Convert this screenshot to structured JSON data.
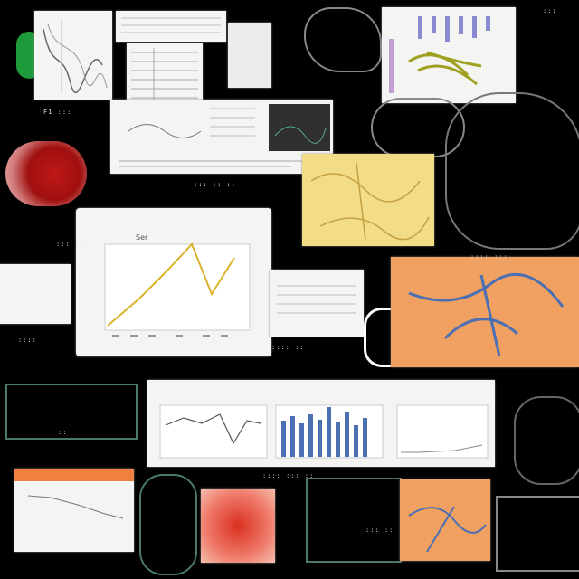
{
  "colors": {
    "background": "#000000",
    "card": "#f4f4f2",
    "line_yellow": "#d9b42a",
    "line_blue": "#4a6fb2",
    "orange_panel": "#f0a060",
    "yellow_panel": "#f2dc86"
  },
  "labels": {
    "blurry_label_1": "F1 ::: ",
    "blurry_label_2": "::: :: ::",
    "blurry_label_3": "::: ::",
    "blurry_label_4": "::::",
    "blurry_label_5": ":::: ::",
    "blurry_label_6": "::",
    "blurry_label_7": ":::: ::: ::",
    "blurry_label_8": "::: ::",
    "blurry_label_9": ":::",
    "blurry_label_10": ":::: :::"
  },
  "main_chart": {
    "title": "Ser"
  }
}
